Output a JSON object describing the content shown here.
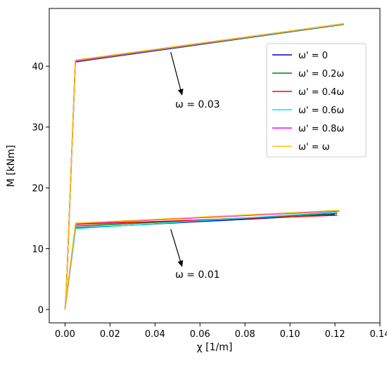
{
  "chart_data": {
    "type": "line",
    "title": "",
    "xlabel": "χ [1/m]",
    "ylabel": "M [kNm]",
    "xlim": [
      -0.007,
      0.14
    ],
    "ylim": [
      -2.2,
      49.5
    ],
    "xticks": [
      0.0,
      0.02,
      0.04,
      0.06,
      0.08,
      0.1,
      0.12,
      0.14
    ],
    "xtick_labels": [
      "0.00",
      "0.02",
      "0.04",
      "0.06",
      "0.08",
      "0.10",
      "0.12",
      "0.14"
    ],
    "yticks": [
      0,
      10,
      20,
      30,
      40
    ],
    "ytick_labels": [
      "0",
      "10",
      "20",
      "30",
      "40"
    ],
    "grid": false,
    "legend_position": "top-right",
    "series": [
      {
        "name": "ω' = 0",
        "color": "#0000cc",
        "omega_003": [
          [
            0,
            0
          ],
          [
            0.0006,
            3.2
          ],
          [
            0.0046,
            40.7
          ],
          [
            0.124,
            46.9
          ]
        ],
        "omega_001": [
          [
            0,
            0
          ],
          [
            0.0005,
            1.5
          ],
          [
            0.0047,
            13.4
          ],
          [
            0.12,
            15.6
          ]
        ]
      },
      {
        "name": "ω' = 0.2ω",
        "color": "#008000",
        "omega_003": [
          [
            0,
            0
          ],
          [
            0.0006,
            3.2
          ],
          [
            0.0046,
            40.75
          ],
          [
            0.124,
            46.9
          ]
        ],
        "omega_001": [
          [
            0,
            0
          ],
          [
            0.0005,
            1.6
          ],
          [
            0.0047,
            13.7
          ],
          [
            0.121,
            15.8
          ]
        ]
      },
      {
        "name": "ω' = 0.4ω",
        "color": "#ff0000",
        "omega_003": [
          [
            0,
            0
          ],
          [
            0.0006,
            3.3
          ],
          [
            0.0046,
            40.8
          ],
          [
            0.124,
            46.95
          ]
        ],
        "omega_001": [
          [
            0,
            0
          ],
          [
            0.0005,
            1.7
          ],
          [
            0.0047,
            14.0
          ],
          [
            0.121,
            15.5
          ]
        ]
      },
      {
        "name": "ω' = 0.6ω",
        "color": "#00e5ee",
        "omega_003": [
          [
            0,
            0
          ],
          [
            0.0006,
            3.3
          ],
          [
            0.0046,
            40.85
          ],
          [
            0.124,
            46.95
          ]
        ],
        "omega_001": [
          [
            0,
            0
          ],
          [
            0.0005,
            1.6
          ],
          [
            0.0047,
            13.3
          ],
          [
            0.121,
            16.0
          ]
        ]
      },
      {
        "name": "ω' = 0.8ω",
        "color": "#ff00ff",
        "omega_003": [
          [
            0,
            0
          ],
          [
            0.0006,
            3.3
          ],
          [
            0.0046,
            40.9
          ],
          [
            0.124,
            47.0
          ]
        ],
        "omega_001": [
          [
            0,
            0
          ],
          [
            0.0005,
            1.7
          ],
          [
            0.0047,
            14.1
          ],
          [
            0.122,
            16.2
          ]
        ]
      },
      {
        "name": "ω' = ω",
        "color": "#ffc000",
        "omega_003": [
          [
            0,
            0
          ],
          [
            0.0006,
            3.3
          ],
          [
            0.0046,
            41.0
          ],
          [
            0.124,
            47.0
          ]
        ],
        "omega_001": [
          [
            0,
            0
          ],
          [
            0.0005,
            1.8
          ],
          [
            0.0047,
            14.2
          ],
          [
            0.122,
            16.3
          ]
        ]
      }
    ],
    "annotations": [
      {
        "text": "ω = 0.03",
        "x": 0.049,
        "y": 33.2,
        "arrow_from": [
          0.047,
          42.3
        ],
        "arrow_to": [
          0.052,
          35.3
        ]
      },
      {
        "text": "ω = 0.01",
        "x": 0.049,
        "y": 5.2,
        "arrow_from": [
          0.047,
          13.2
        ],
        "arrow_to": [
          0.052,
          7.1
        ]
      }
    ]
  }
}
